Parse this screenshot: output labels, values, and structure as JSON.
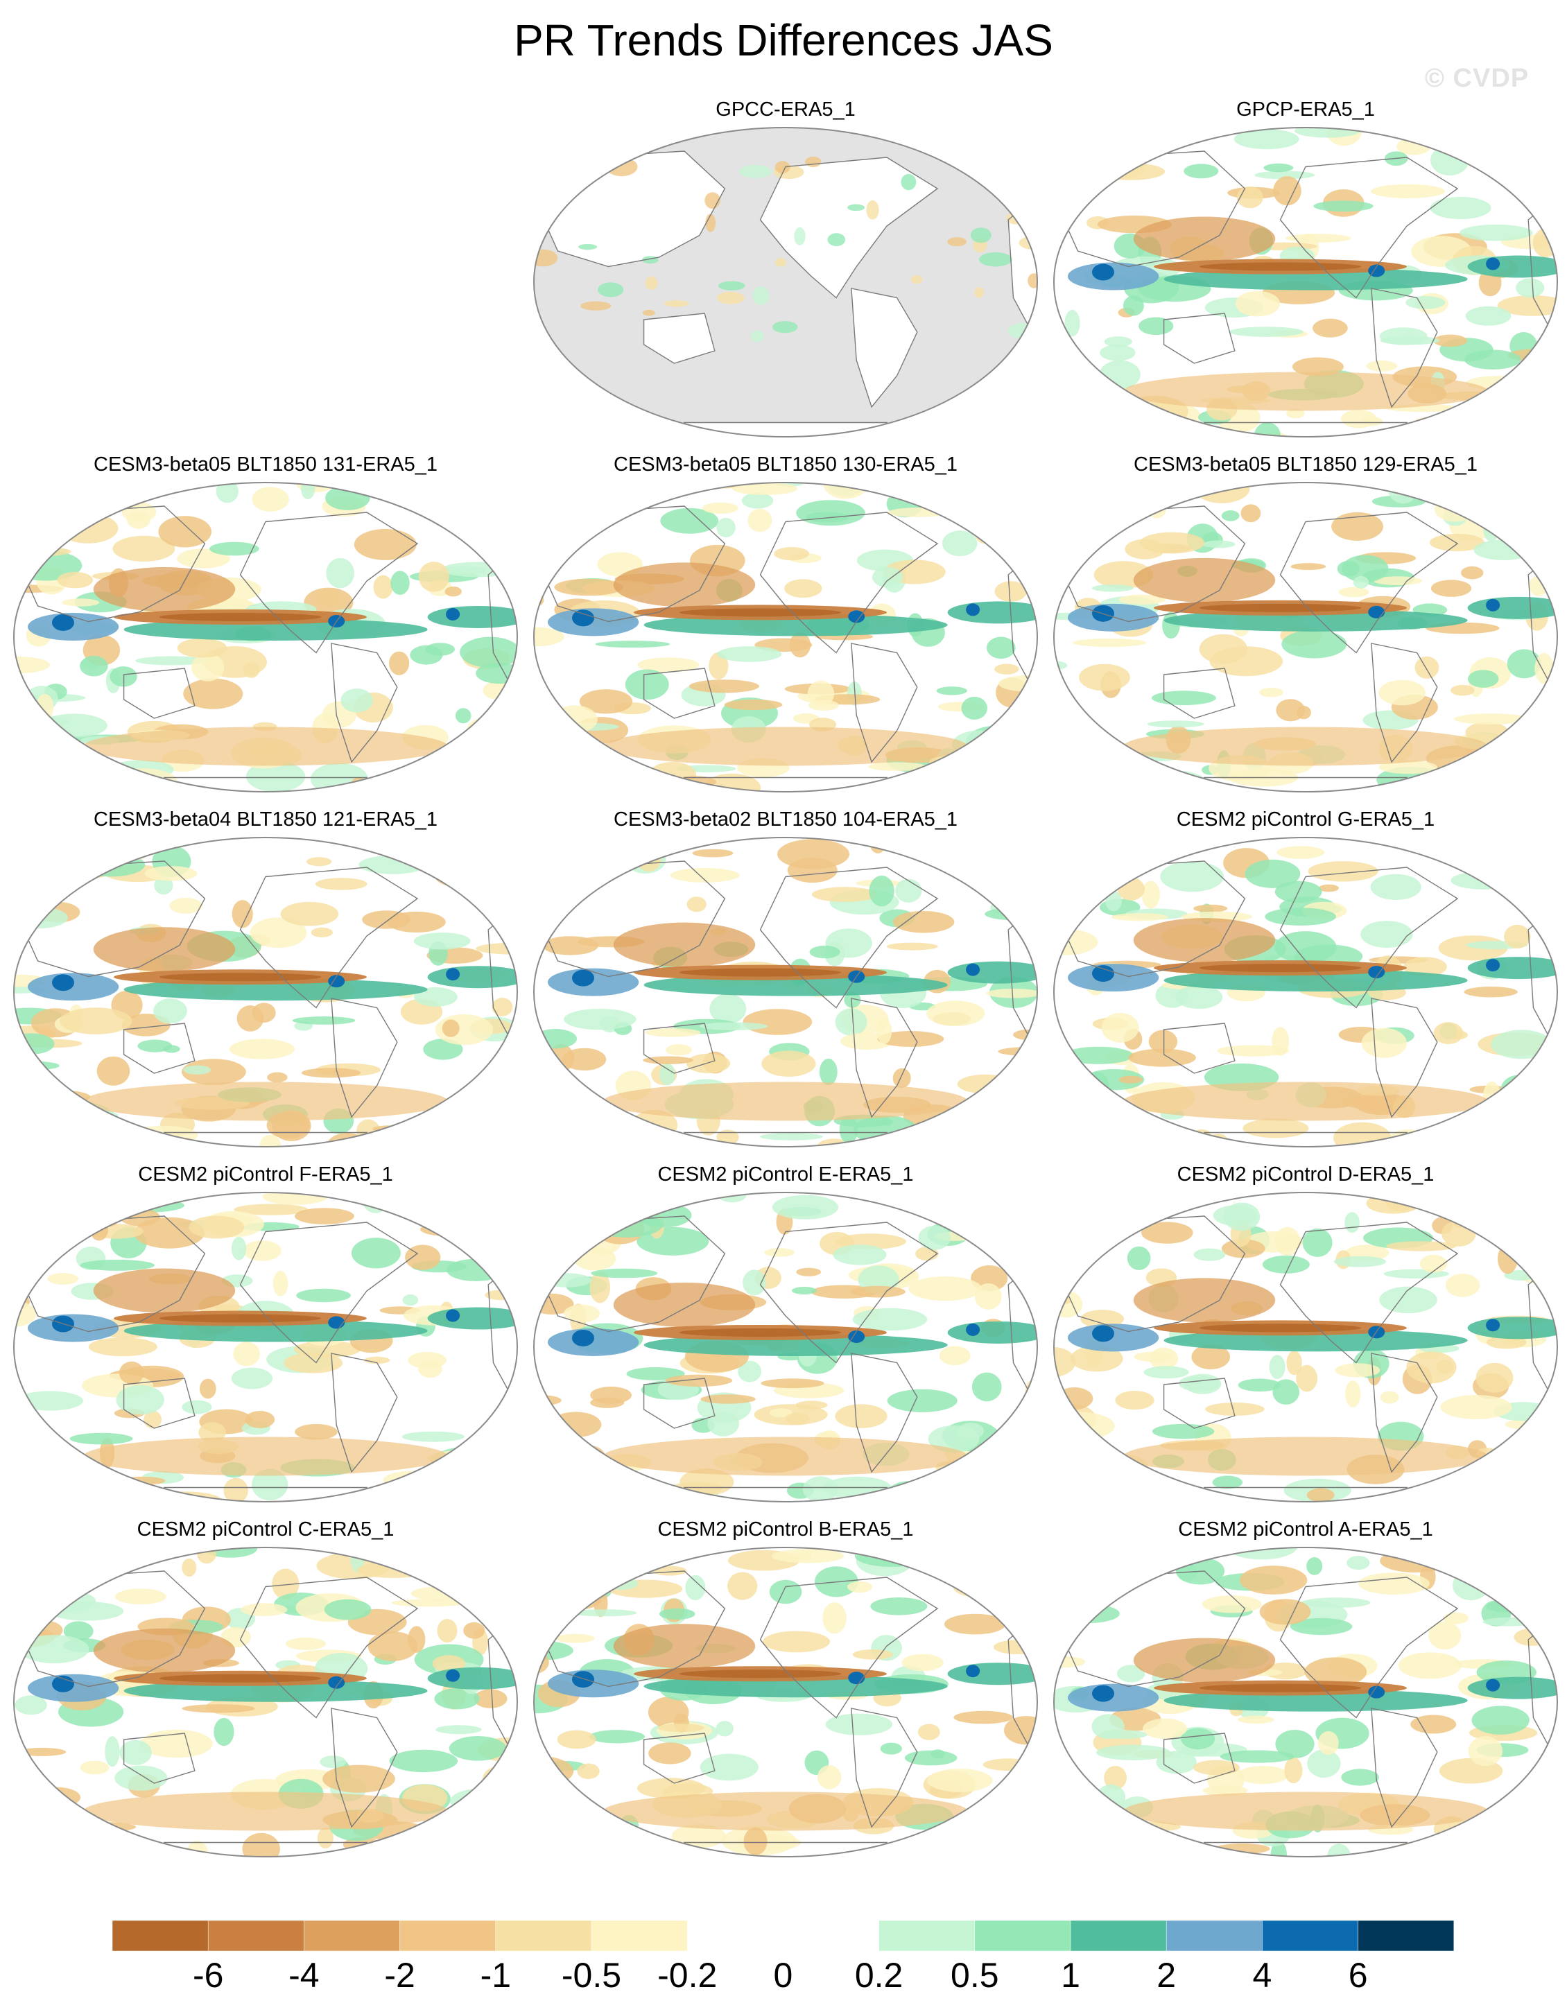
{
  "title": "PR Trends Differences JAS",
  "watermark": "© CVDP",
  "panels": [
    {
      "label": "GPCC-ERA5_1",
      "style": "land"
    },
    {
      "label": "GPCP-ERA5_1",
      "style": "global"
    },
    {
      "label": "CESM3-beta05 BLT1850 131-ERA5_1",
      "style": "model"
    },
    {
      "label": "CESM3-beta05 BLT1850 130-ERA5_1",
      "style": "model"
    },
    {
      "label": "CESM3-beta05 BLT1850 129-ERA5_1",
      "style": "model"
    },
    {
      "label": "CESM3-beta04 BLT1850 121-ERA5_1",
      "style": "model"
    },
    {
      "label": "CESM3-beta02 BLT1850 104-ERA5_1",
      "style": "model"
    },
    {
      "label": "CESM2 piControl G-ERA5_1",
      "style": "model"
    },
    {
      "label": "CESM2 piControl F-ERA5_1",
      "style": "model"
    },
    {
      "label": "CESM2 piControl E-ERA5_1",
      "style": "model"
    },
    {
      "label": "CESM2 piControl D-ERA5_1",
      "style": "model"
    },
    {
      "label": "CESM2 piControl C-ERA5_1",
      "style": "model"
    },
    {
      "label": "CESM2 piControl B-ERA5_1",
      "style": "model"
    },
    {
      "label": "CESM2 piControl A-ERA5_1",
      "style": "model"
    }
  ],
  "colorbar": {
    "colors": [
      "#b5692b",
      "#c98040",
      "#dea05d",
      "#f0c585",
      "#f7e0a4",
      "#fdf3c3",
      "#ffffff",
      "#ffffff",
      "#c6f5d3",
      "#94e8b5",
      "#50bd9c",
      "#6ea8cf",
      "#0c6aae",
      "#003759"
    ],
    "tick_labels": [
      "-6",
      "-4",
      "-2",
      "-1",
      "-0.5",
      "-0.2",
      "0",
      "0.2",
      "0.5",
      "1",
      "2",
      "4",
      "6"
    ]
  },
  "colors": {
    "land_mask": "#e3e3e3",
    "coastline": "#7a7a7a",
    "map_border": "#8a8a8a"
  }
}
